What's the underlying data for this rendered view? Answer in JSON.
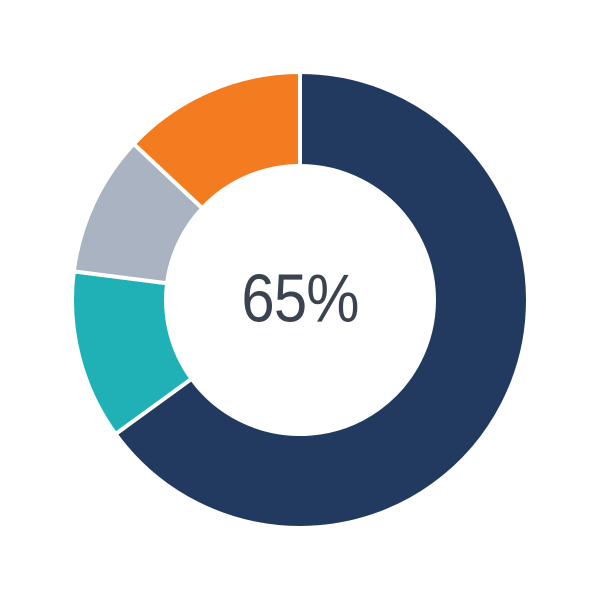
{
  "page": {
    "background_color": "#ffffff"
  },
  "chart_data": {
    "type": "pie",
    "variant": "donut",
    "center_label": "65%",
    "center_label_color": "#3B4350",
    "start_angle_deg": 0,
    "direction": "clockwise",
    "separator_color": "#ffffff",
    "legend": "none",
    "slices": [
      {
        "name": "navy",
        "value": 65,
        "color": "#233A60"
      },
      {
        "name": "teal",
        "value": 12,
        "color": "#1FB1B5"
      },
      {
        "name": "gray",
        "value": 10,
        "color": "#A9B3C1"
      },
      {
        "name": "orange",
        "value": 13,
        "color": "#F47C20"
      }
    ]
  }
}
